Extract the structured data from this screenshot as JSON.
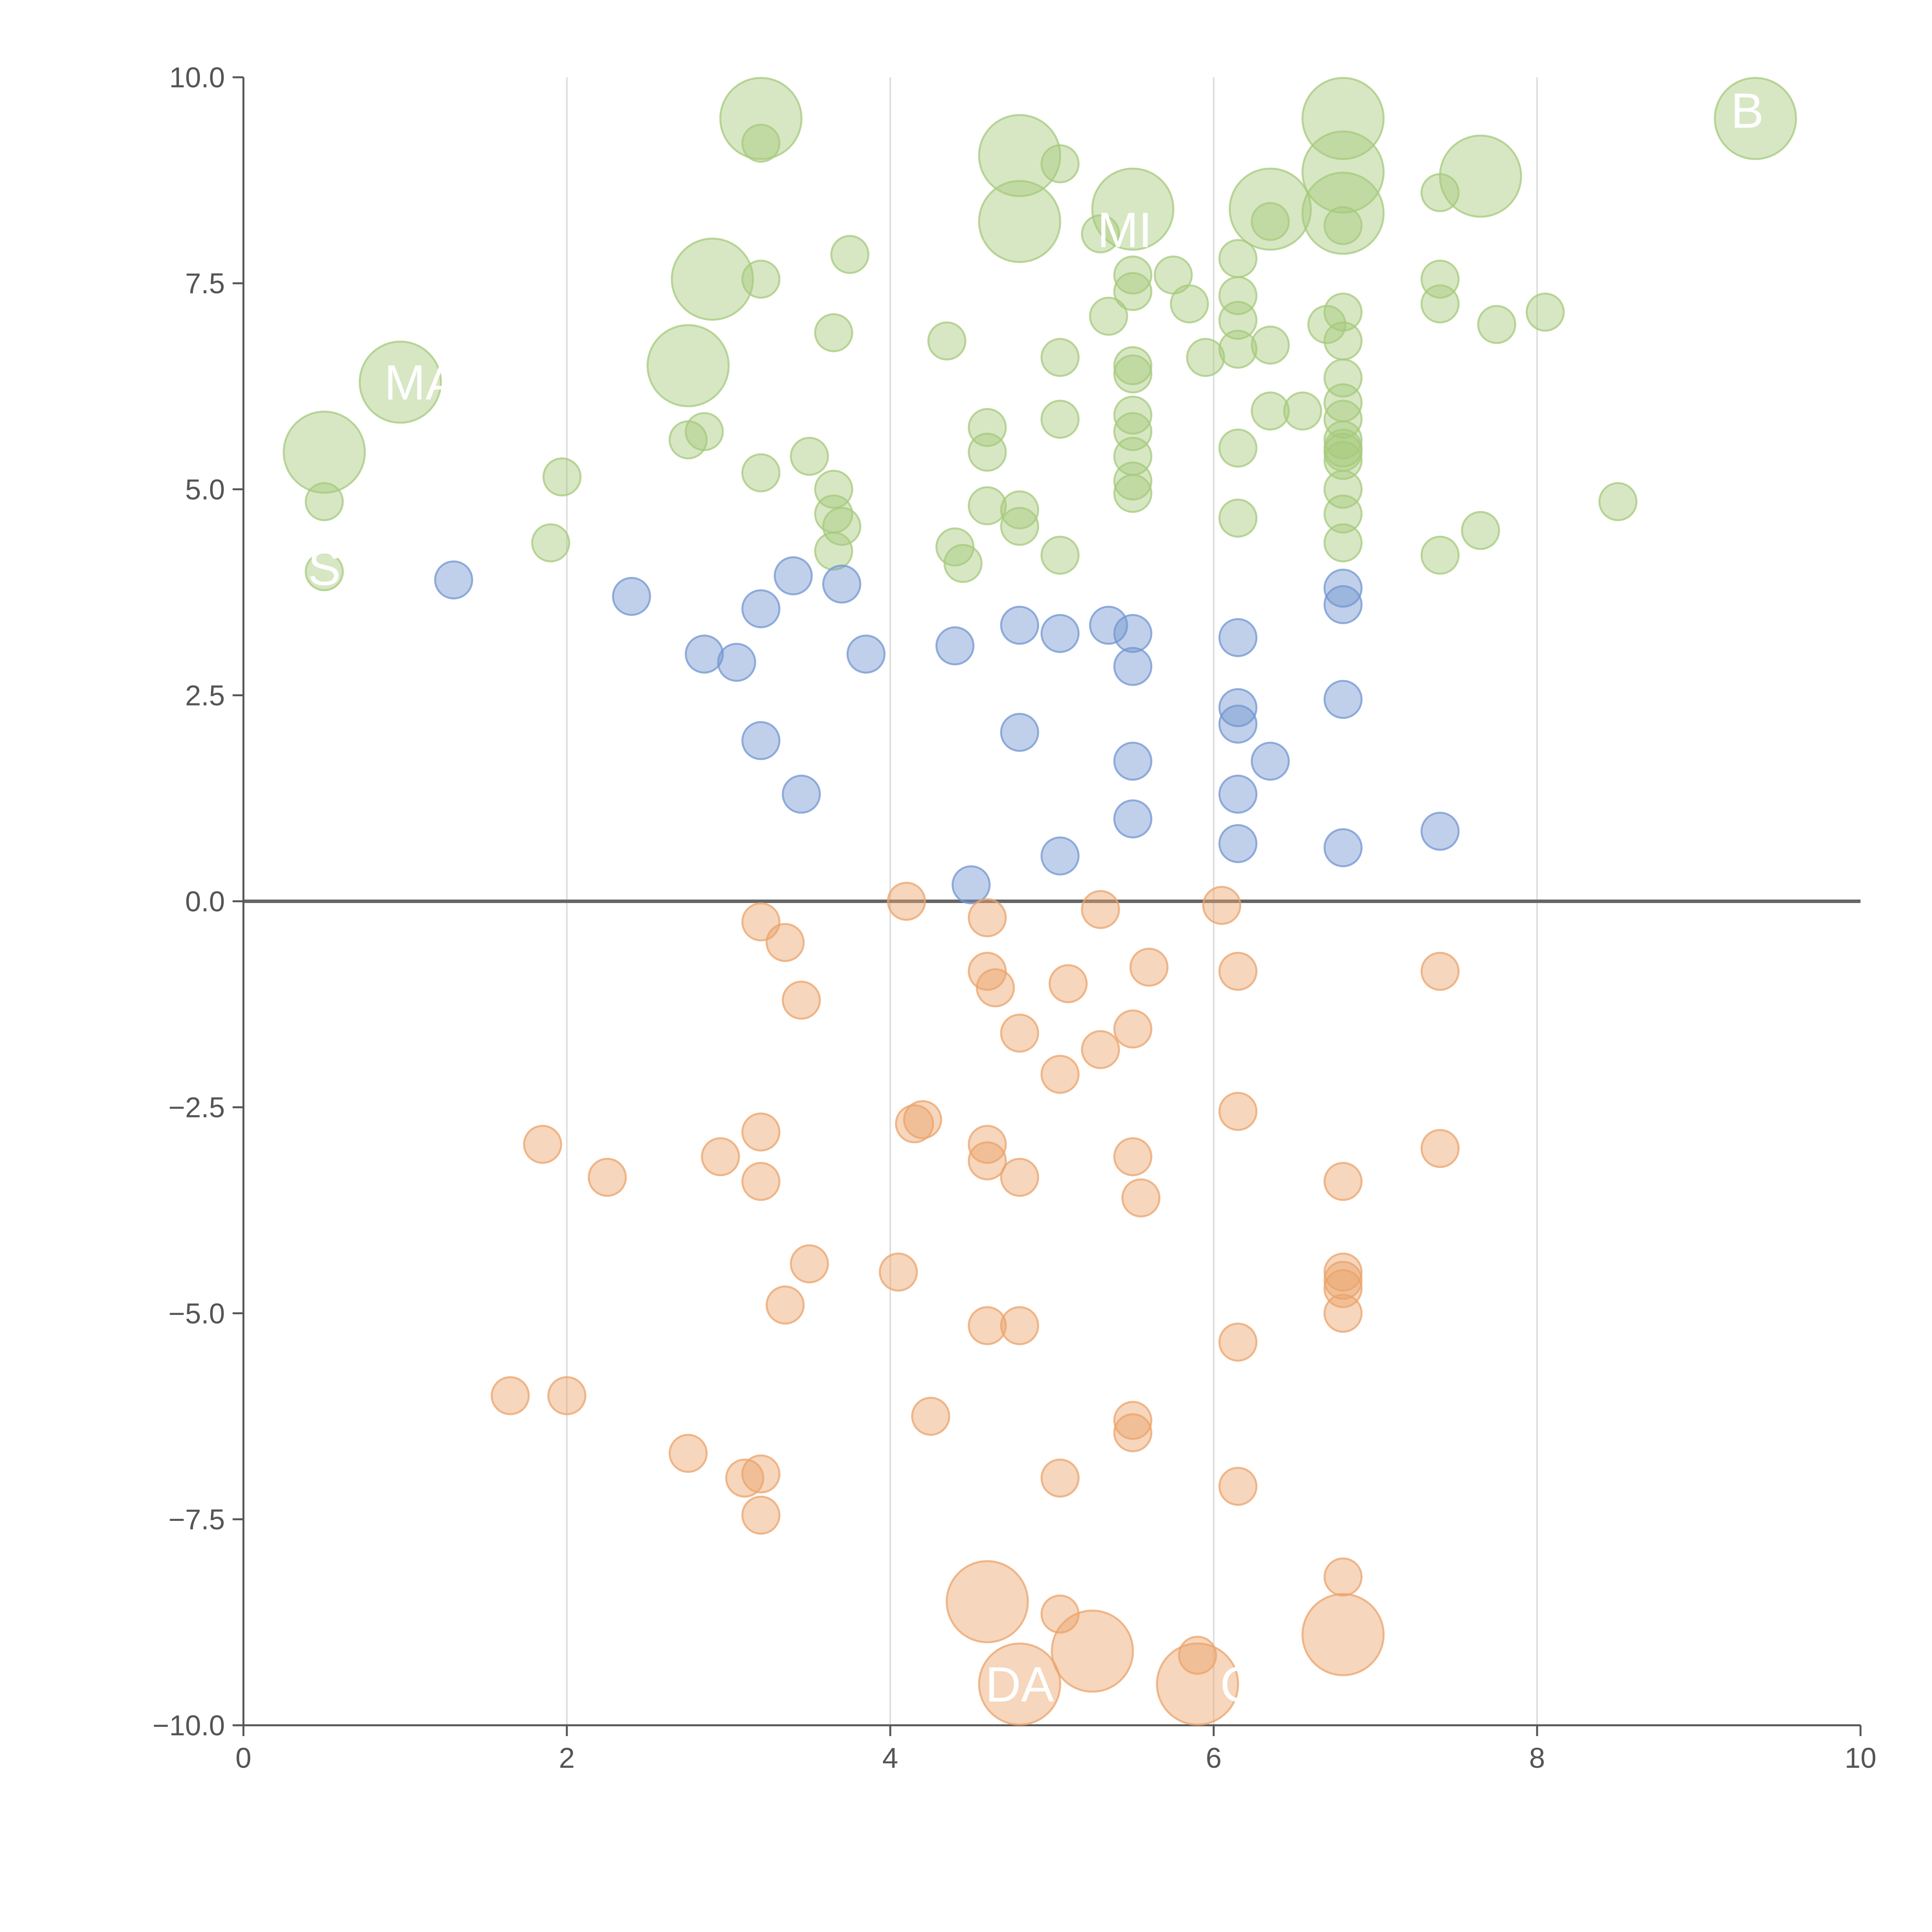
{
  "colors": {
    "positive_high": "#a6c97c",
    "positive_low": "#7396d1",
    "negative": "#eba36b",
    "axis": "#555555",
    "grid": "#dddddd",
    "zero_line": "#666666",
    "label": "#ffffff"
  },
  "chart_data": {
    "type": "scatter",
    "title": "",
    "xlabel": "",
    "ylabel": "",
    "xlim": [
      0,
      10
    ],
    "ylim": [
      -10,
      10
    ],
    "x_ticks": [
      0,
      2,
      4,
      6,
      8,
      10
    ],
    "x_tick_labels": [
      "0",
      "2",
      "4",
      "6",
      "8",
      "10"
    ],
    "y_ticks": [
      -10,
      -7.5,
      -5,
      -2.5,
      0,
      2.5,
      5,
      7.5,
      10
    ],
    "y_tick_labels": [
      "−10.0",
      "−7.5",
      "−5.0",
      "−2.5",
      "0.0",
      "2.5",
      "5.0",
      "7.5",
      "10.0"
    ],
    "grid": {
      "x": true,
      "y": false
    },
    "zero_line": true,
    "labels": [
      {
        "text": "MA",
        "x": 1.1,
        "y": 6.3
      },
      {
        "text": "S",
        "x": 0.5,
        "y": 4.05
      },
      {
        "text": "MI",
        "x": 5.45,
        "y": 8.15
      },
      {
        "text": "B",
        "x": 9.3,
        "y": 9.6
      },
      {
        "text": "DA",
        "x": 4.8,
        "y": -9.5
      },
      {
        "text": "C",
        "x": 6.15,
        "y": -9.5
      }
    ],
    "series": [
      {
        "group": "positive_high",
        "points": [
          [
            3.2,
            9.5,
            "l"
          ],
          [
            3.2,
            9.2,
            "s"
          ],
          [
            4.8,
            9.05,
            "l"
          ],
          [
            5.05,
            8.95,
            "s"
          ],
          [
            6.8,
            9.5,
            "l"
          ],
          [
            6.8,
            8.85,
            "l"
          ],
          [
            7.65,
            8.8,
            "l"
          ],
          [
            9.35,
            9.5,
            "l"
          ],
          [
            5.5,
            8.4,
            "l"
          ],
          [
            6.35,
            8.4,
            "l"
          ],
          [
            6.8,
            8.35,
            "l"
          ],
          [
            6.8,
            8.2,
            "s"
          ],
          [
            4.8,
            8.25,
            "l"
          ],
          [
            6.35,
            8.25,
            "s"
          ],
          [
            5.3,
            8.1,
            "s"
          ],
          [
            7.4,
            8.6,
            "s"
          ],
          [
            3.75,
            7.85,
            "s"
          ],
          [
            6.15,
            7.8,
            "s"
          ],
          [
            2.9,
            7.55,
            "l"
          ],
          [
            3.2,
            7.55,
            "s"
          ],
          [
            5.5,
            7.6,
            "s"
          ],
          [
            5.75,
            7.6,
            "s"
          ],
          [
            7.4,
            7.55,
            "s"
          ],
          [
            5.5,
            7.4,
            "s"
          ],
          [
            6.15,
            7.35,
            "s"
          ],
          [
            7.4,
            7.25,
            "s"
          ],
          [
            5.85,
            7.25,
            "s"
          ],
          [
            6.8,
            7.15,
            "s"
          ],
          [
            8.05,
            7.15,
            "s"
          ],
          [
            5.35,
            7.1,
            "s"
          ],
          [
            6.15,
            7.05,
            "s"
          ],
          [
            7.75,
            7.0,
            "s"
          ],
          [
            6.7,
            7.0,
            "s"
          ],
          [
            3.65,
            6.9,
            "s"
          ],
          [
            4.35,
            6.8,
            "s"
          ],
          [
            6.8,
            6.8,
            "s"
          ],
          [
            6.35,
            6.75,
            "s"
          ],
          [
            6.15,
            6.7,
            "s"
          ],
          [
            5.05,
            6.6,
            "s"
          ],
          [
            5.95,
            6.6,
            "s"
          ],
          [
            2.75,
            6.5,
            "l"
          ],
          [
            5.5,
            6.5,
            "s"
          ],
          [
            5.5,
            6.4,
            "s"
          ],
          [
            6.8,
            6.35,
            "s"
          ],
          [
            0.97,
            6.3,
            "l"
          ],
          [
            6.8,
            6.05,
            "s"
          ],
          [
            6.35,
            5.95,
            "s"
          ],
          [
            6.55,
            5.95,
            "s"
          ],
          [
            5.5,
            5.9,
            "s"
          ],
          [
            6.8,
            5.85,
            "s"
          ],
          [
            5.05,
            5.85,
            "s"
          ],
          [
            4.6,
            5.75,
            "s"
          ],
          [
            5.5,
            5.7,
            "s"
          ],
          [
            2.85,
            5.7,
            "s"
          ],
          [
            2.75,
            5.6,
            "s"
          ],
          [
            6.8,
            5.6,
            "s"
          ],
          [
            6.8,
            5.5,
            "s"
          ],
          [
            6.15,
            5.5,
            "s"
          ],
          [
            0.5,
            5.45,
            "l"
          ],
          [
            6.8,
            5.45,
            "s"
          ],
          [
            3.5,
            5.4,
            "s"
          ],
          [
            4.6,
            5.45,
            "s"
          ],
          [
            5.5,
            5.4,
            "s"
          ],
          [
            6.8,
            5.35,
            "s"
          ],
          [
            3.2,
            5.2,
            "s"
          ],
          [
            1.97,
            5.15,
            "s"
          ],
          [
            5.5,
            5.1,
            "s"
          ],
          [
            6.8,
            5.0,
            "s"
          ],
          [
            3.65,
            5.0,
            "s"
          ],
          [
            5.5,
            4.95,
            "s"
          ],
          [
            8.5,
            4.85,
            "s"
          ],
          [
            0.5,
            4.85,
            "s"
          ],
          [
            4.6,
            4.8,
            "s"
          ],
          [
            4.8,
            4.75,
            "s"
          ],
          [
            3.65,
            4.7,
            "s"
          ],
          [
            6.8,
            4.7,
            "s"
          ],
          [
            6.15,
            4.65,
            "s"
          ],
          [
            3.7,
            4.55,
            "s"
          ],
          [
            4.8,
            4.55,
            "s"
          ],
          [
            7.65,
            4.5,
            "s"
          ],
          [
            1.9,
            4.35,
            "s"
          ],
          [
            6.8,
            4.35,
            "s"
          ],
          [
            4.4,
            4.3,
            "s"
          ],
          [
            3.65,
            4.25,
            "s"
          ],
          [
            7.4,
            4.2,
            "s"
          ],
          [
            5.05,
            4.2,
            "s"
          ],
          [
            4.45,
            4.1,
            "s"
          ],
          [
            0.5,
            4.0,
            "s"
          ]
        ]
      },
      {
        "group": "positive_low",
        "points": [
          [
            1.3,
            3.9,
            "s"
          ],
          [
            2.4,
            3.7,
            "s"
          ],
          [
            3.4,
            3.95,
            "s"
          ],
          [
            3.7,
            3.85,
            "s"
          ],
          [
            6.8,
            3.8,
            "s"
          ],
          [
            6.8,
            3.6,
            "s"
          ],
          [
            3.2,
            3.55,
            "s"
          ],
          [
            4.8,
            3.35,
            "s"
          ],
          [
            5.35,
            3.35,
            "s"
          ],
          [
            5.05,
            3.25,
            "s"
          ],
          [
            5.5,
            3.25,
            "s"
          ],
          [
            6.15,
            3.2,
            "s"
          ],
          [
            4.4,
            3.1,
            "s"
          ],
          [
            2.85,
            3.0,
            "s"
          ],
          [
            3.85,
            3.0,
            "s"
          ],
          [
            3.05,
            2.9,
            "s"
          ],
          [
            5.5,
            2.85,
            "s"
          ],
          [
            6.8,
            2.45,
            "s"
          ],
          [
            6.15,
            2.35,
            "s"
          ],
          [
            6.15,
            2.15,
            "s"
          ],
          [
            4.8,
            2.05,
            "s"
          ],
          [
            3.2,
            1.95,
            "s"
          ],
          [
            5.5,
            1.7,
            "s"
          ],
          [
            6.35,
            1.7,
            "s"
          ],
          [
            3.45,
            1.3,
            "s"
          ],
          [
            6.15,
            1.3,
            "s"
          ],
          [
            5.5,
            1.0,
            "s"
          ],
          [
            7.4,
            0.85,
            "s"
          ],
          [
            6.15,
            0.7,
            "s"
          ],
          [
            6.8,
            0.65,
            "s"
          ],
          [
            5.05,
            0.55,
            "s"
          ],
          [
            4.5,
            0.2,
            "s"
          ]
        ]
      },
      {
        "group": "negative",
        "points": [
          [
            4.1,
            0.0,
            "s"
          ],
          [
            5.3,
            -0.1,
            "s"
          ],
          [
            6.05,
            -0.05,
            "s"
          ],
          [
            3.2,
            -0.25,
            "s"
          ],
          [
            4.6,
            -0.2,
            "s"
          ],
          [
            3.35,
            -0.5,
            "s"
          ],
          [
            5.6,
            -0.8,
            "s"
          ],
          [
            4.6,
            -0.85,
            "s"
          ],
          [
            6.15,
            -0.85,
            "s"
          ],
          [
            7.4,
            -0.85,
            "s"
          ],
          [
            5.1,
            -1.0,
            "s"
          ],
          [
            4.65,
            -1.05,
            "s"
          ],
          [
            3.45,
            -1.2,
            "s"
          ],
          [
            5.5,
            -1.55,
            "s"
          ],
          [
            4.8,
            -1.6,
            "s"
          ],
          [
            5.3,
            -1.8,
            "s"
          ],
          [
            5.05,
            -2.1,
            "s"
          ],
          [
            6.15,
            -2.55,
            "s"
          ],
          [
            4.2,
            -2.65,
            "s"
          ],
          [
            4.15,
            -2.7,
            "s"
          ],
          [
            3.2,
            -2.8,
            "s"
          ],
          [
            4.6,
            -2.95,
            "s"
          ],
          [
            1.85,
            -2.95,
            "s"
          ],
          [
            7.4,
            -3.0,
            "s"
          ],
          [
            2.95,
            -3.1,
            "s"
          ],
          [
            5.5,
            -3.1,
            "s"
          ],
          [
            4.6,
            -3.15,
            "s"
          ],
          [
            2.25,
            -3.35,
            "s"
          ],
          [
            4.8,
            -3.35,
            "s"
          ],
          [
            3.2,
            -3.4,
            "s"
          ],
          [
            6.8,
            -3.4,
            "s"
          ],
          [
            5.55,
            -3.6,
            "s"
          ],
          [
            3.5,
            -4.4,
            "s"
          ],
          [
            4.05,
            -4.5,
            "s"
          ],
          [
            6.8,
            -4.5,
            "s"
          ],
          [
            6.8,
            -4.6,
            "s"
          ],
          [
            6.8,
            -4.7,
            "s"
          ],
          [
            3.35,
            -4.9,
            "s"
          ],
          [
            6.8,
            -5.0,
            "s"
          ],
          [
            4.6,
            -5.15,
            "s"
          ],
          [
            4.8,
            -5.15,
            "s"
          ],
          [
            6.15,
            -5.35,
            "s"
          ],
          [
            1.65,
            -6.0,
            "s"
          ],
          [
            2.0,
            -6.0,
            "s"
          ],
          [
            4.25,
            -6.25,
            "s"
          ],
          [
            5.5,
            -6.3,
            "s"
          ],
          [
            5.5,
            -6.45,
            "s"
          ],
          [
            2.75,
            -6.7,
            "s"
          ],
          [
            3.2,
            -6.95,
            "s"
          ],
          [
            5.05,
            -7.0,
            "s"
          ],
          [
            3.1,
            -7.0,
            "s"
          ],
          [
            6.15,
            -7.1,
            "s"
          ],
          [
            3.2,
            -7.45,
            "s"
          ],
          [
            6.8,
            -8.2,
            "s"
          ],
          [
            4.6,
            -8.5,
            "l"
          ],
          [
            5.05,
            -8.65,
            "s"
          ],
          [
            6.8,
            -8.9,
            "l"
          ],
          [
            5.25,
            -9.1,
            "l"
          ],
          [
            5.9,
            -9.15,
            "s"
          ],
          [
            4.8,
            -9.5,
            "l"
          ],
          [
            5.9,
            -9.5,
            "l"
          ]
        ]
      }
    ]
  }
}
